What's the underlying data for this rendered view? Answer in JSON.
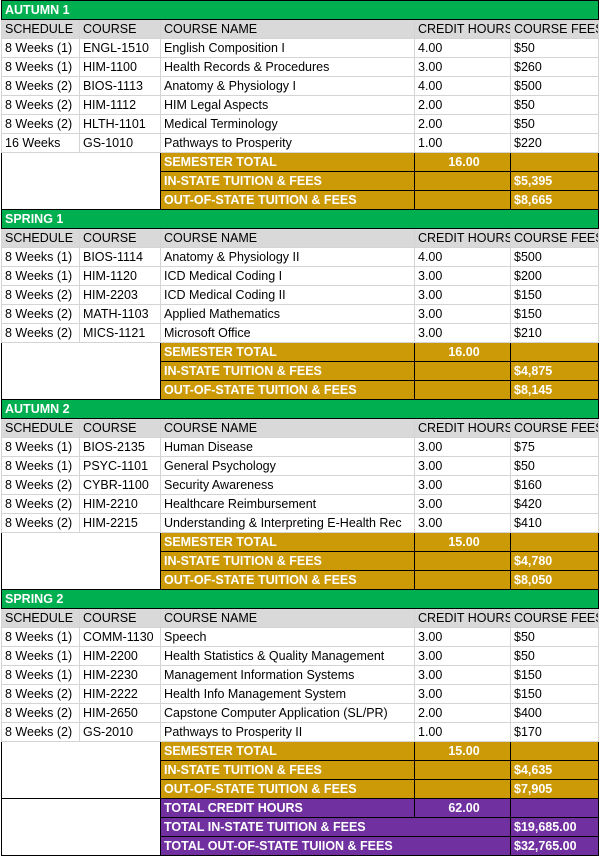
{
  "headers": {
    "schedule": "SCHEDULE",
    "course": "COURSE",
    "course_name": "COURSE NAME",
    "credit_hours": "CREDIT HOURS",
    "course_fees": "COURSE FEES"
  },
  "semesters": [
    {
      "name": "AUTUMN 1",
      "courses": [
        {
          "schedule": "8 Weeks (1)",
          "course": "ENGL-1510",
          "name": "English Composition I",
          "hours": "4.00",
          "fees": "$50"
        },
        {
          "schedule": "8 Weeks (1)",
          "course": "HIM-1100",
          "name": "Health Records & Procedures",
          "hours": "3.00",
          "fees": "$260"
        },
        {
          "schedule": "8 Weeks (2)",
          "course": "BIOS-1113",
          "name": "Anatomy & Physiology I",
          "hours": "4.00",
          "fees": "$500"
        },
        {
          "schedule": "8 Weeks (2)",
          "course": "HIM-1112",
          "name": "HIM Legal Aspects",
          "hours": "2.00",
          "fees": "$50"
        },
        {
          "schedule": "8 Weeks (2)",
          "course": "HLTH-1101",
          "name": "Medical Terminology",
          "hours": "2.00",
          "fees": "$50"
        },
        {
          "schedule": "16 Weeks",
          "course": "GS-1010",
          "name": "Pathways to Prosperity",
          "hours": "1.00",
          "fees": "$220"
        }
      ],
      "semester_total_label": "SEMESTER TOTAL",
      "semester_total": "16.00",
      "in_state_label": "IN-STATE TUITION & FEES",
      "in_state": "$5,395",
      "out_state_label": "OUT-OF-STATE TUITION & FEES",
      "out_state": "$8,665"
    },
    {
      "name": "SPRING 1",
      "courses": [
        {
          "schedule": "8 Weeks (1)",
          "course": "BIOS-1114",
          "name": "Anatomy & Physiology II",
          "hours": "4.00",
          "fees": "$500"
        },
        {
          "schedule": "8 Weeks (1)",
          "course": "HIM-1120",
          "name": "ICD Medical Coding I",
          "hours": "3.00",
          "fees": "$200"
        },
        {
          "schedule": "8 Weeks (2)",
          "course": "HIM-2203",
          "name": "ICD Medical Coding II",
          "hours": "3.00",
          "fees": "$150"
        },
        {
          "schedule": "8 Weeks (2)",
          "course": "MATH-1103",
          "name": "Applied Mathematics",
          "hours": "3.00",
          "fees": "$150"
        },
        {
          "schedule": "8 Weeks (2)",
          "course": "MICS-1121",
          "name": "Microsoft Office",
          "hours": "3.00",
          "fees": "$210"
        }
      ],
      "semester_total_label": "SEMESTER TOTAL",
      "semester_total": "16.00",
      "in_state_label": "IN-STATE TUITION & FEES",
      "in_state": "$4,875",
      "out_state_label": "OUT-OF-STATE TUITION & FEES",
      "out_state": "$8,145"
    },
    {
      "name": "AUTUMN 2",
      "courses": [
        {
          "schedule": "8 Weeks (1)",
          "course": "BIOS-2135",
          "name": "Human Disease",
          "hours": "3.00",
          "fees": "$75"
        },
        {
          "schedule": "8 Weeks (1)",
          "course": "PSYC-1101",
          "name": "General Psychology",
          "hours": "3.00",
          "fees": "$50"
        },
        {
          "schedule": "8 Weeks (2)",
          "course": "CYBR-1100",
          "name": "Security Awareness",
          "hours": "3.00",
          "fees": "$160"
        },
        {
          "schedule": "8 Weeks (2)",
          "course": "HIM-2210",
          "name": "Healthcare Reimbursement",
          "hours": "3.00",
          "fees": "$420"
        },
        {
          "schedule": "8 Weeks (2)",
          "course": "HIM-2215",
          "name": "Understanding & Interpreting E-Health Rec",
          "hours": "3.00",
          "fees": "$410"
        }
      ],
      "semester_total_label": "SEMESTER TOTAL",
      "semester_total": "15.00",
      "in_state_label": "IN-STATE TUITION & FEES",
      "in_state": "$4,780",
      "out_state_label": "OUT-OF-STATE TUITION & FEES",
      "out_state": "$8,050"
    },
    {
      "name": "SPRING 2",
      "courses": [
        {
          "schedule": "8 Weeks (1)",
          "course": "COMM-1130",
          "name": "Speech",
          "hours": "3.00",
          "fees": "$50"
        },
        {
          "schedule": "8 Weeks (1)",
          "course": "HIM-2200",
          "name": "Health Statistics & Quality Management",
          "hours": "3.00",
          "fees": "$50"
        },
        {
          "schedule": "8 Weeks (1)",
          "course": "HIM-2230",
          "name": "Management Information Systems",
          "hours": "3.00",
          "fees": "$150"
        },
        {
          "schedule": "8 Weeks (2)",
          "course": "HIM-2222",
          "name": "Health Info Management System",
          "hours": "3.00",
          "fees": "$150"
        },
        {
          "schedule": "8 Weeks (2)",
          "course": "HIM-2650",
          "name": "Capstone Computer Application (SL/PR)",
          "hours": "2.00",
          "fees": "$400"
        },
        {
          "schedule": "8 Weeks (2)",
          "course": "GS-2010",
          "name": "Pathways to Prosperity II",
          "hours": "1.00",
          "fees": "$170"
        }
      ],
      "semester_total_label": "SEMESTER TOTAL",
      "semester_total": "15.00",
      "in_state_label": "IN-STATE TUITION & FEES",
      "in_state": "$4,635",
      "out_state_label": "OUT-OF-STATE TUITION & FEES",
      "out_state": "$7,905"
    }
  ],
  "grand_totals": {
    "credit_hours_label": "TOTAL CREDIT HOURS",
    "credit_hours": "62.00",
    "in_state_label": "TOTAL IN-STATE TUITION & FEES",
    "in_state": "$19,685.00",
    "out_state_label": "TOTAL OUT-OF-STATE TUIION & FEES",
    "out_state": "$32,765.00"
  },
  "colors": {
    "semester_header": "#00b050",
    "column_header": "#d9d9d9",
    "semester_totals": "#cc9a06",
    "grand_totals": "#7030a0"
  }
}
